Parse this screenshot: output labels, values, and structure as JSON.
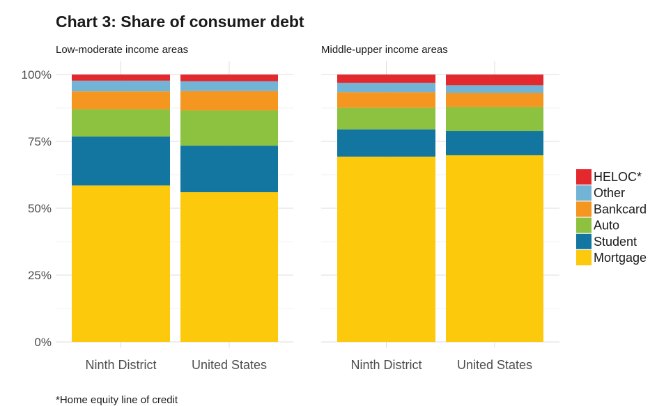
{
  "chart_data": {
    "type": "bar",
    "stacked": true,
    "title": "Chart 3: Share of consumer debt",
    "caption": "*Home equity line of credit",
    "ylim": [
      0,
      100
    ],
    "y_ticks": [
      "0%",
      "25%",
      "50%",
      "75%",
      "100%"
    ],
    "y_tick_values": [
      0,
      25,
      50,
      75,
      100
    ],
    "grid": true,
    "legend_position": "right",
    "legend_order": [
      "HELOC*",
      "Other",
      "Bankcard",
      "Auto",
      "Student",
      "Mortgage"
    ],
    "colors": {
      "Mortgage": "#FDC90D",
      "Student": "#1276A1",
      "Auto": "#8DC240",
      "Bankcard": "#F49620",
      "Other": "#72B4D6",
      "HELOC*": "#E3292D"
    },
    "panels": [
      {
        "name": "Low-moderate income areas",
        "categories": [
          "Ninth District",
          "United States"
        ],
        "series": [
          {
            "name": "Mortgage",
            "values": [
              58.5,
              56.0
            ]
          },
          {
            "name": "Student",
            "values": [
              18.3,
              17.4
            ]
          },
          {
            "name": "Auto",
            "values": [
              10.2,
              13.2
            ]
          },
          {
            "name": "Bankcard",
            "values": [
              6.7,
              7.2
            ]
          },
          {
            "name": "Other",
            "values": [
              4.0,
              3.7
            ]
          },
          {
            "name": "HELOC*",
            "values": [
              2.3,
              2.5
            ]
          }
        ]
      },
      {
        "name": "Middle-upper income areas",
        "categories": [
          "Ninth District",
          "United States"
        ],
        "series": [
          {
            "name": "Mortgage",
            "values": [
              69.3,
              69.8
            ]
          },
          {
            "name": "Student",
            "values": [
              10.2,
              9.1
            ]
          },
          {
            "name": "Auto",
            "values": [
              8.1,
              8.9
            ]
          },
          {
            "name": "Bankcard",
            "values": [
              5.8,
              5.3
            ]
          },
          {
            "name": "Other",
            "values": [
              3.5,
              2.9
            ]
          },
          {
            "name": "HELOC*",
            "values": [
              3.1,
              4.0
            ]
          }
        ]
      }
    ]
  }
}
